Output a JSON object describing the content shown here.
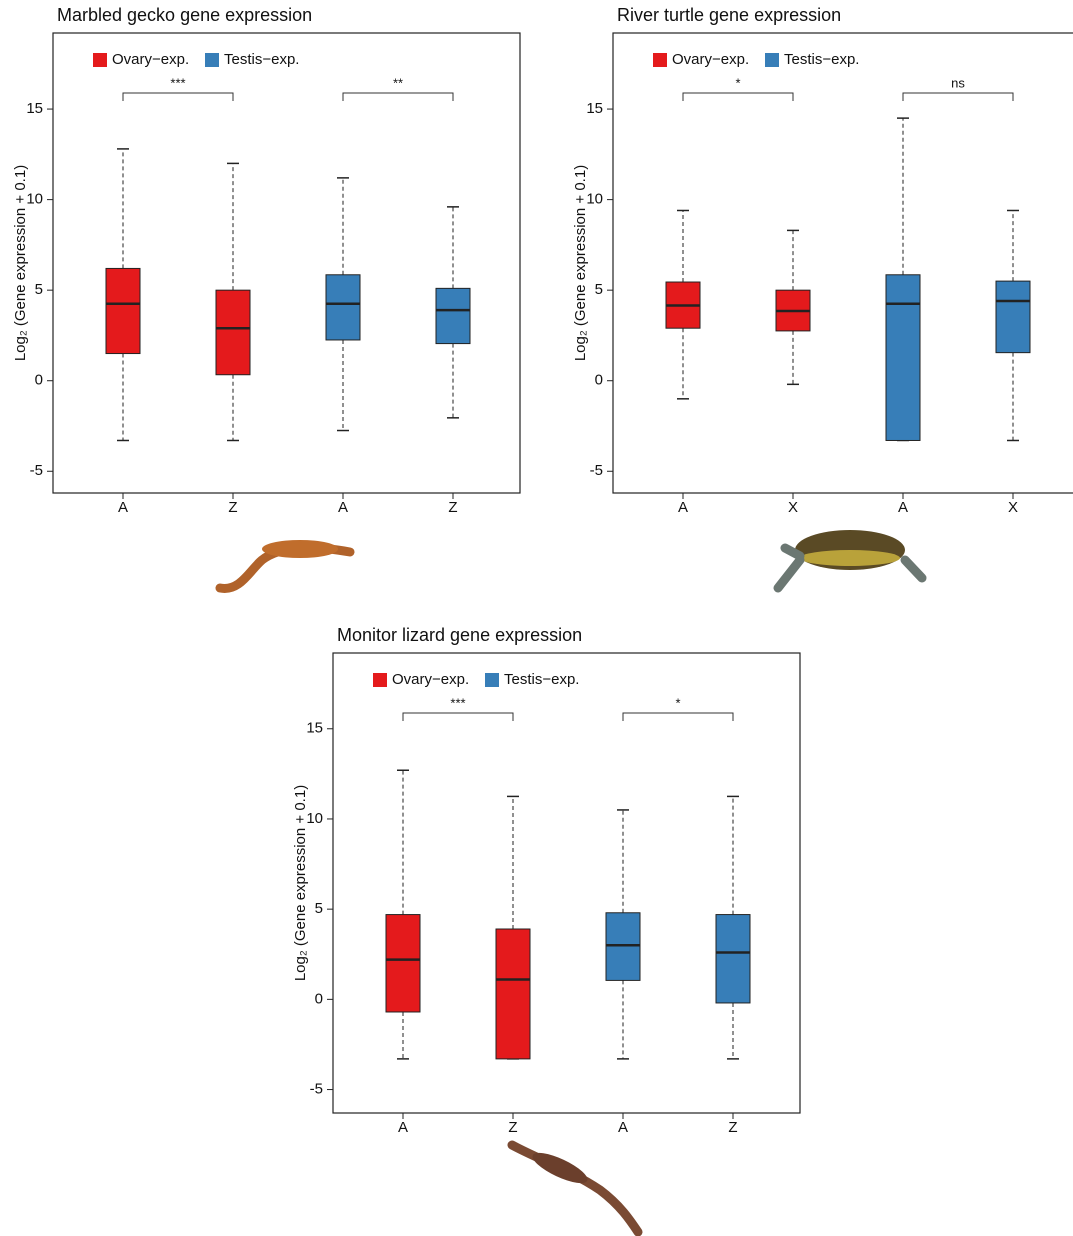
{
  "chart_data": [
    {
      "type": "box",
      "title": "Marbled gecko gene expression",
      "ylabel": "Log₂ (Gene expression + 0.1)",
      "ylim": [
        -6.2,
        19.2
      ],
      "yticks": [
        -5,
        0,
        5,
        10,
        15
      ],
      "series": [
        {
          "name": "Ovary−exp.",
          "color": "#e41a1c",
          "categories": [
            "A",
            "Z"
          ],
          "significance": "***",
          "values": [
            {
              "min": -3.3,
              "q1": 1.5,
              "median": 4.25,
              "q3": 6.2,
              "max": 12.8
            },
            {
              "min": -3.3,
              "q1": 0.33,
              "median": 2.9,
              "q3": 5.0,
              "max": 12.0
            }
          ]
        },
        {
          "name": "Testis−exp.",
          "color": "#377eb8",
          "categories": [
            "A",
            "Z"
          ],
          "significance": "**",
          "values": [
            {
              "min": -2.75,
              "q1": 2.25,
              "median": 4.25,
              "q3": 5.85,
              "max": 11.2
            },
            {
              "min": -2.05,
              "q1": 2.05,
              "median": 3.9,
              "q3": 5.1,
              "max": 9.6
            }
          ]
        }
      ]
    },
    {
      "type": "box",
      "title": "River turtle gene expression",
      "ylabel": "Log₂ (Gene expression + 0.1)",
      "ylim": [
        -6.2,
        19.2
      ],
      "yticks": [
        -5,
        0,
        5,
        10,
        15
      ],
      "series": [
        {
          "name": "Ovary−exp.",
          "color": "#e41a1c",
          "categories": [
            "A",
            "X"
          ],
          "significance": "*",
          "values": [
            {
              "min": -1.0,
              "q1": 2.9,
              "median": 4.15,
              "q3": 5.45,
              "max": 9.4
            },
            {
              "min": -0.2,
              "q1": 2.75,
              "median": 3.85,
              "q3": 5.0,
              "max": 8.3
            }
          ]
        },
        {
          "name": "Testis−exp.",
          "color": "#377eb8",
          "categories": [
            "A",
            "X"
          ],
          "significance": "ns",
          "values": [
            {
              "min": -3.3,
              "q1": -3.3,
              "median": 4.25,
              "q3": 5.85,
              "max": 14.5
            },
            {
              "min": -3.3,
              "q1": 1.55,
              "median": 4.4,
              "q3": 5.5,
              "max": 9.4
            }
          ]
        }
      ]
    },
    {
      "type": "box",
      "title": "Monitor lizard gene expression",
      "ylabel": "Log₂ (Gene expression + 0.1)",
      "ylim": [
        -6.3,
        19.2
      ],
      "yticks": [
        -5,
        0,
        5,
        10,
        15
      ],
      "series": [
        {
          "name": "Ovary−exp.",
          "color": "#e41a1c",
          "categories": [
            "A",
            "Z"
          ],
          "significance": "***",
          "values": [
            {
              "min": -3.3,
              "q1": -0.7,
              "median": 2.2,
              "q3": 4.7,
              "max": 12.7
            },
            {
              "min": -3.3,
              "q1": -3.3,
              "median": 1.1,
              "q3": 3.9,
              "max": 11.25
            }
          ]
        },
        {
          "name": "Testis−exp.",
          "color": "#377eb8",
          "categories": [
            "A",
            "Z"
          ],
          "significance": "*",
          "values": [
            {
              "min": -3.3,
              "q1": 1.05,
              "median": 3.0,
              "q3": 4.8,
              "max": 10.5
            },
            {
              "min": -3.3,
              "q1": -0.2,
              "median": 2.6,
              "q3": 4.7,
              "max": 11.25
            }
          ]
        }
      ]
    }
  ]
}
